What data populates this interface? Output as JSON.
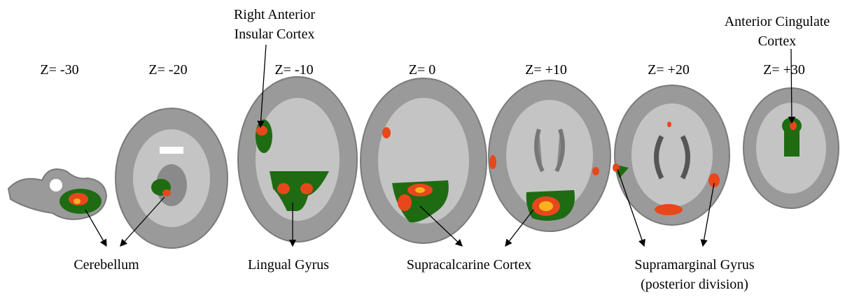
{
  "slices": [
    {
      "label": "Z= -30"
    },
    {
      "label": "Z= -20"
    },
    {
      "label": "Z= -10"
    },
    {
      "label": "Z= 0"
    },
    {
      "label": "Z= +10"
    },
    {
      "label": "Z= +20"
    },
    {
      "label": "Z= +30"
    }
  ],
  "regions": [
    {
      "lines": [
        "Right Anterior",
        "Insular Cortex"
      ]
    },
    {
      "lines": [
        "Anterior Cingulate",
        "Cortex"
      ]
    },
    {
      "lines": [
        "Cerebellum"
      ]
    },
    {
      "lines": [
        "Lingual Gyrus"
      ]
    },
    {
      "lines": [
        "Supracalcarine Cortex"
      ]
    },
    {
      "lines": [
        "Supramarginal Gyrus",
        "(posterior division)"
      ]
    }
  ]
}
